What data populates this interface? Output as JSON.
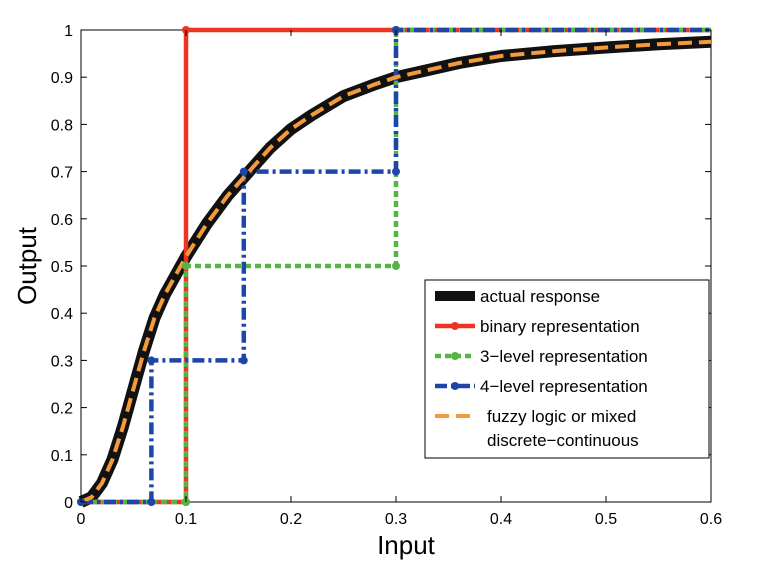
{
  "chart_data": {
    "type": "line",
    "xlabel": "Input",
    "ylabel": "Output",
    "xlim": [
      0,
      0.6
    ],
    "ylim": [
      0,
      1
    ],
    "x_ticks": [
      "0",
      "0.1",
      "0.2",
      "0.3",
      "0.4",
      "0.5",
      "0.6"
    ],
    "y_ticks": [
      "0",
      "0.1",
      "0.2",
      "0.3",
      "0.4",
      "0.5",
      "0.6",
      "0.7",
      "0.8",
      "0.9",
      "1"
    ],
    "grid": false,
    "legend_position": "lower-right",
    "series": [
      {
        "name": "actual response",
        "color": "#111111",
        "style": "solid-thick",
        "x": [
          0,
          0.01,
          0.02,
          0.03,
          0.04,
          0.05,
          0.06,
          0.07,
          0.08,
          0.09,
          0.1,
          0.12,
          0.14,
          0.16,
          0.18,
          0.2,
          0.22,
          0.25,
          0.28,
          0.3,
          0.33,
          0.36,
          0.4,
          0.45,
          0.5,
          0.55,
          0.6
        ],
        "y": [
          0,
          0.01,
          0.04,
          0.09,
          0.16,
          0.24,
          0.32,
          0.39,
          0.44,
          0.48,
          0.52,
          0.59,
          0.65,
          0.7,
          0.75,
          0.79,
          0.82,
          0.86,
          0.885,
          0.9,
          0.915,
          0.93,
          0.945,
          0.955,
          0.963,
          0.97,
          0.975
        ]
      },
      {
        "name": "binary representation",
        "color": "#ee3322",
        "style": "solid",
        "x": [
          0,
          0.1,
          0.1,
          0.3,
          0.6
        ],
        "y": [
          0,
          0,
          1,
          1,
          1
        ]
      },
      {
        "name": "3−level representation",
        "color": "#55b544",
        "style": "dotted",
        "x": [
          0,
          0.1,
          0.1,
          0.3,
          0.3,
          0.6
        ],
        "y": [
          0,
          0,
          0.5,
          0.5,
          1,
          1
        ]
      },
      {
        "name": "4−level representation",
        "color": "#1f45a8",
        "style": "dashdot",
        "x": [
          0,
          0.067,
          0.067,
          0.155,
          0.155,
          0.3,
          0.3,
          0.6
        ],
        "y": [
          0,
          0,
          0.3,
          0.3,
          0.7,
          0.7,
          1,
          1
        ]
      },
      {
        "name": "fuzzy logic or mixed",
        "name_line2": "discrete−continuous",
        "color": "#f59a3a",
        "style": "dashed",
        "x": [
          0,
          0.01,
          0.02,
          0.03,
          0.04,
          0.05,
          0.06,
          0.07,
          0.08,
          0.09,
          0.1,
          0.12,
          0.14,
          0.16,
          0.18,
          0.2,
          0.22,
          0.25,
          0.28,
          0.3,
          0.33,
          0.36,
          0.4,
          0.45,
          0.5,
          0.55,
          0.6
        ],
        "y": [
          0,
          0.01,
          0.04,
          0.09,
          0.16,
          0.24,
          0.32,
          0.39,
          0.44,
          0.48,
          0.52,
          0.59,
          0.65,
          0.7,
          0.75,
          0.79,
          0.82,
          0.86,
          0.885,
          0.9,
          0.915,
          0.93,
          0.945,
          0.955,
          0.963,
          0.97,
          0.975
        ]
      }
    ],
    "markers": {
      "binary representation": [
        [
          0.1,
          0
        ],
        [
          0.1,
          1
        ],
        [
          0.3,
          1
        ]
      ],
      "3−level representation": [
        [
          0,
          0
        ],
        [
          0.1,
          0
        ],
        [
          0.1,
          0.5
        ],
        [
          0.3,
          0.5
        ],
        [
          0.3,
          1
        ]
      ],
      "4−level representation": [
        [
          0,
          0
        ],
        [
          0.067,
          0
        ],
        [
          0.067,
          0.3
        ],
        [
          0.155,
          0.3
        ],
        [
          0.155,
          0.7
        ],
        [
          0.3,
          0.7
        ],
        [
          0.3,
          1
        ]
      ]
    }
  }
}
